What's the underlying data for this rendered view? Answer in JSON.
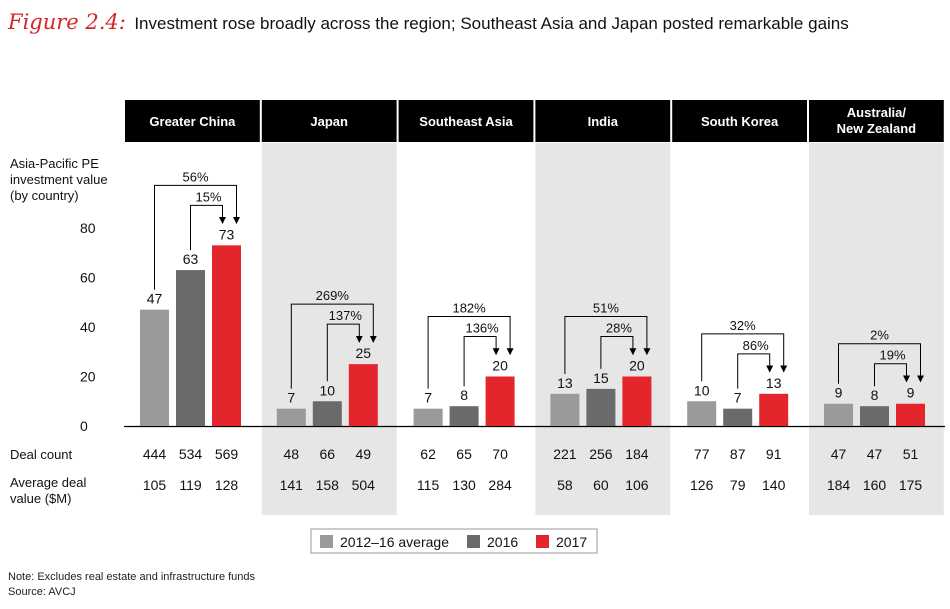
{
  "figure": {
    "label": "Figure 2.4:",
    "title": "Investment rose broadly across the region; Southeast Asia and Japan posted remarkable gains"
  },
  "notes": {
    "note": "Note: Excludes real estate and infrastructure funds",
    "source": "Source: AVCJ"
  },
  "chart_data": {
    "type": "bar",
    "ylabel": [
      "Asia-Pacific PE",
      "investment value",
      "(by country)"
    ],
    "ylim": [
      0,
      80
    ],
    "yticks": [
      0,
      20,
      40,
      60,
      80
    ],
    "series_names": [
      "2012–16 average",
      "2016",
      "2017"
    ],
    "colors": {
      "avg": "#9a9a9a",
      "y2016": "#6a6a6c",
      "y2017": "#e3262b",
      "panel": "#e6e6e6",
      "header": "#000000"
    },
    "row_labels": {
      "deal_count": "Deal count",
      "avg_deal_value": [
        "Average deal",
        "value ($M)"
      ]
    },
    "groups": [
      {
        "name": [
          "Greater China"
        ],
        "values": [
          47,
          63,
          73
        ],
        "pct_total": "56%",
        "pct_yoy": "15%",
        "deal_count": [
          "444",
          "534",
          "569"
        ],
        "avg_deal_value": [
          "105",
          "119",
          "128"
        ]
      },
      {
        "name": [
          "Japan"
        ],
        "values": [
          7,
          10,
          25
        ],
        "pct_total": "269%",
        "pct_yoy": "137%",
        "deal_count": [
          "48",
          "66",
          "49"
        ],
        "avg_deal_value": [
          "141",
          "158",
          "504"
        ]
      },
      {
        "name": [
          "Southeast Asia"
        ],
        "values": [
          7,
          8,
          20
        ],
        "pct_total": "182%",
        "pct_yoy": "136%",
        "deal_count": [
          "62",
          "65",
          "70"
        ],
        "avg_deal_value": [
          "115",
          "130",
          "284"
        ]
      },
      {
        "name": [
          "India"
        ],
        "values": [
          13,
          15,
          20
        ],
        "pct_total": "51%",
        "pct_yoy": "28%",
        "deal_count": [
          "221",
          "256",
          "184"
        ],
        "avg_deal_value": [
          "58",
          "60",
          "106"
        ]
      },
      {
        "name": [
          "South Korea"
        ],
        "values": [
          10,
          7,
          13
        ],
        "pct_total": "32%",
        "pct_yoy": "86%",
        "deal_count": [
          "77",
          "87",
          "91"
        ],
        "avg_deal_value": [
          "126",
          "79",
          "140"
        ]
      },
      {
        "name": [
          "Australia/",
          "New Zealand"
        ],
        "values": [
          9,
          8,
          9
        ],
        "pct_total": "2%",
        "pct_yoy": "19%",
        "deal_count": [
          "47",
          "47",
          "51"
        ],
        "avg_deal_value": [
          "184",
          "160",
          "175"
        ]
      }
    ]
  }
}
